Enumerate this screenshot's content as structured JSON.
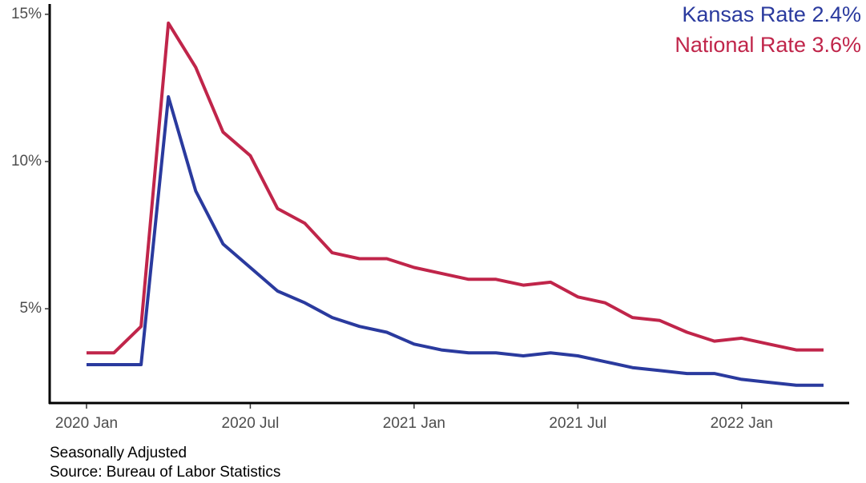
{
  "chart_data": {
    "type": "line",
    "x": [
      "2020-01",
      "2020-02",
      "2020-03",
      "2020-04",
      "2020-05",
      "2020-06",
      "2020-07",
      "2020-08",
      "2020-09",
      "2020-10",
      "2020-11",
      "2020-12",
      "2021-01",
      "2021-02",
      "2021-03",
      "2021-04",
      "2021-05",
      "2021-06",
      "2021-07",
      "2021-08",
      "2021-09",
      "2021-10",
      "2021-11",
      "2021-12",
      "2022-01",
      "2022-02",
      "2022-03",
      "2022-04"
    ],
    "series": [
      {
        "name": "Kansas Rate 2.4%",
        "color": "#2a3a9e",
        "values": [
          3.1,
          3.1,
          3.1,
          12.2,
          9.0,
          7.2,
          6.4,
          5.6,
          5.2,
          4.7,
          4.4,
          4.2,
          3.8,
          3.6,
          3.5,
          3.5,
          3.4,
          3.5,
          3.4,
          3.2,
          3.0,
          2.9,
          2.8,
          2.8,
          2.6,
          2.5,
          2.4,
          2.4
        ]
      },
      {
        "name": "National Rate 3.6%",
        "color": "#c0254a",
        "values": [
          3.5,
          3.5,
          4.4,
          14.7,
          13.2,
          11.0,
          10.2,
          8.4,
          7.9,
          6.9,
          6.7,
          6.7,
          6.4,
          6.2,
          6.0,
          6.0,
          5.8,
          5.9,
          5.4,
          5.2,
          4.7,
          4.6,
          4.2,
          3.9,
          4.0,
          3.8,
          3.6,
          3.6
        ]
      }
    ],
    "xticks": [
      {
        "value": "2020-01",
        "label": "2020 Jan"
      },
      {
        "value": "2020-07",
        "label": "2020 Jul"
      },
      {
        "value": "2021-01",
        "label": "2021 Jan"
      },
      {
        "value": "2021-07",
        "label": "2021 Jul"
      },
      {
        "value": "2022-01",
        "label": "2022 Jan"
      }
    ],
    "ylim": [
      1.77,
      15.35
    ],
    "yticks": [
      {
        "value": 5,
        "label": "5%"
      },
      {
        "value": 10,
        "label": "10%"
      },
      {
        "value": 15,
        "label": "15%"
      }
    ],
    "grid": false,
    "legend": "top-right",
    "caption": [
      "Seasonally Adjusted",
      "Source: Bureau of Labor Statistics"
    ]
  }
}
